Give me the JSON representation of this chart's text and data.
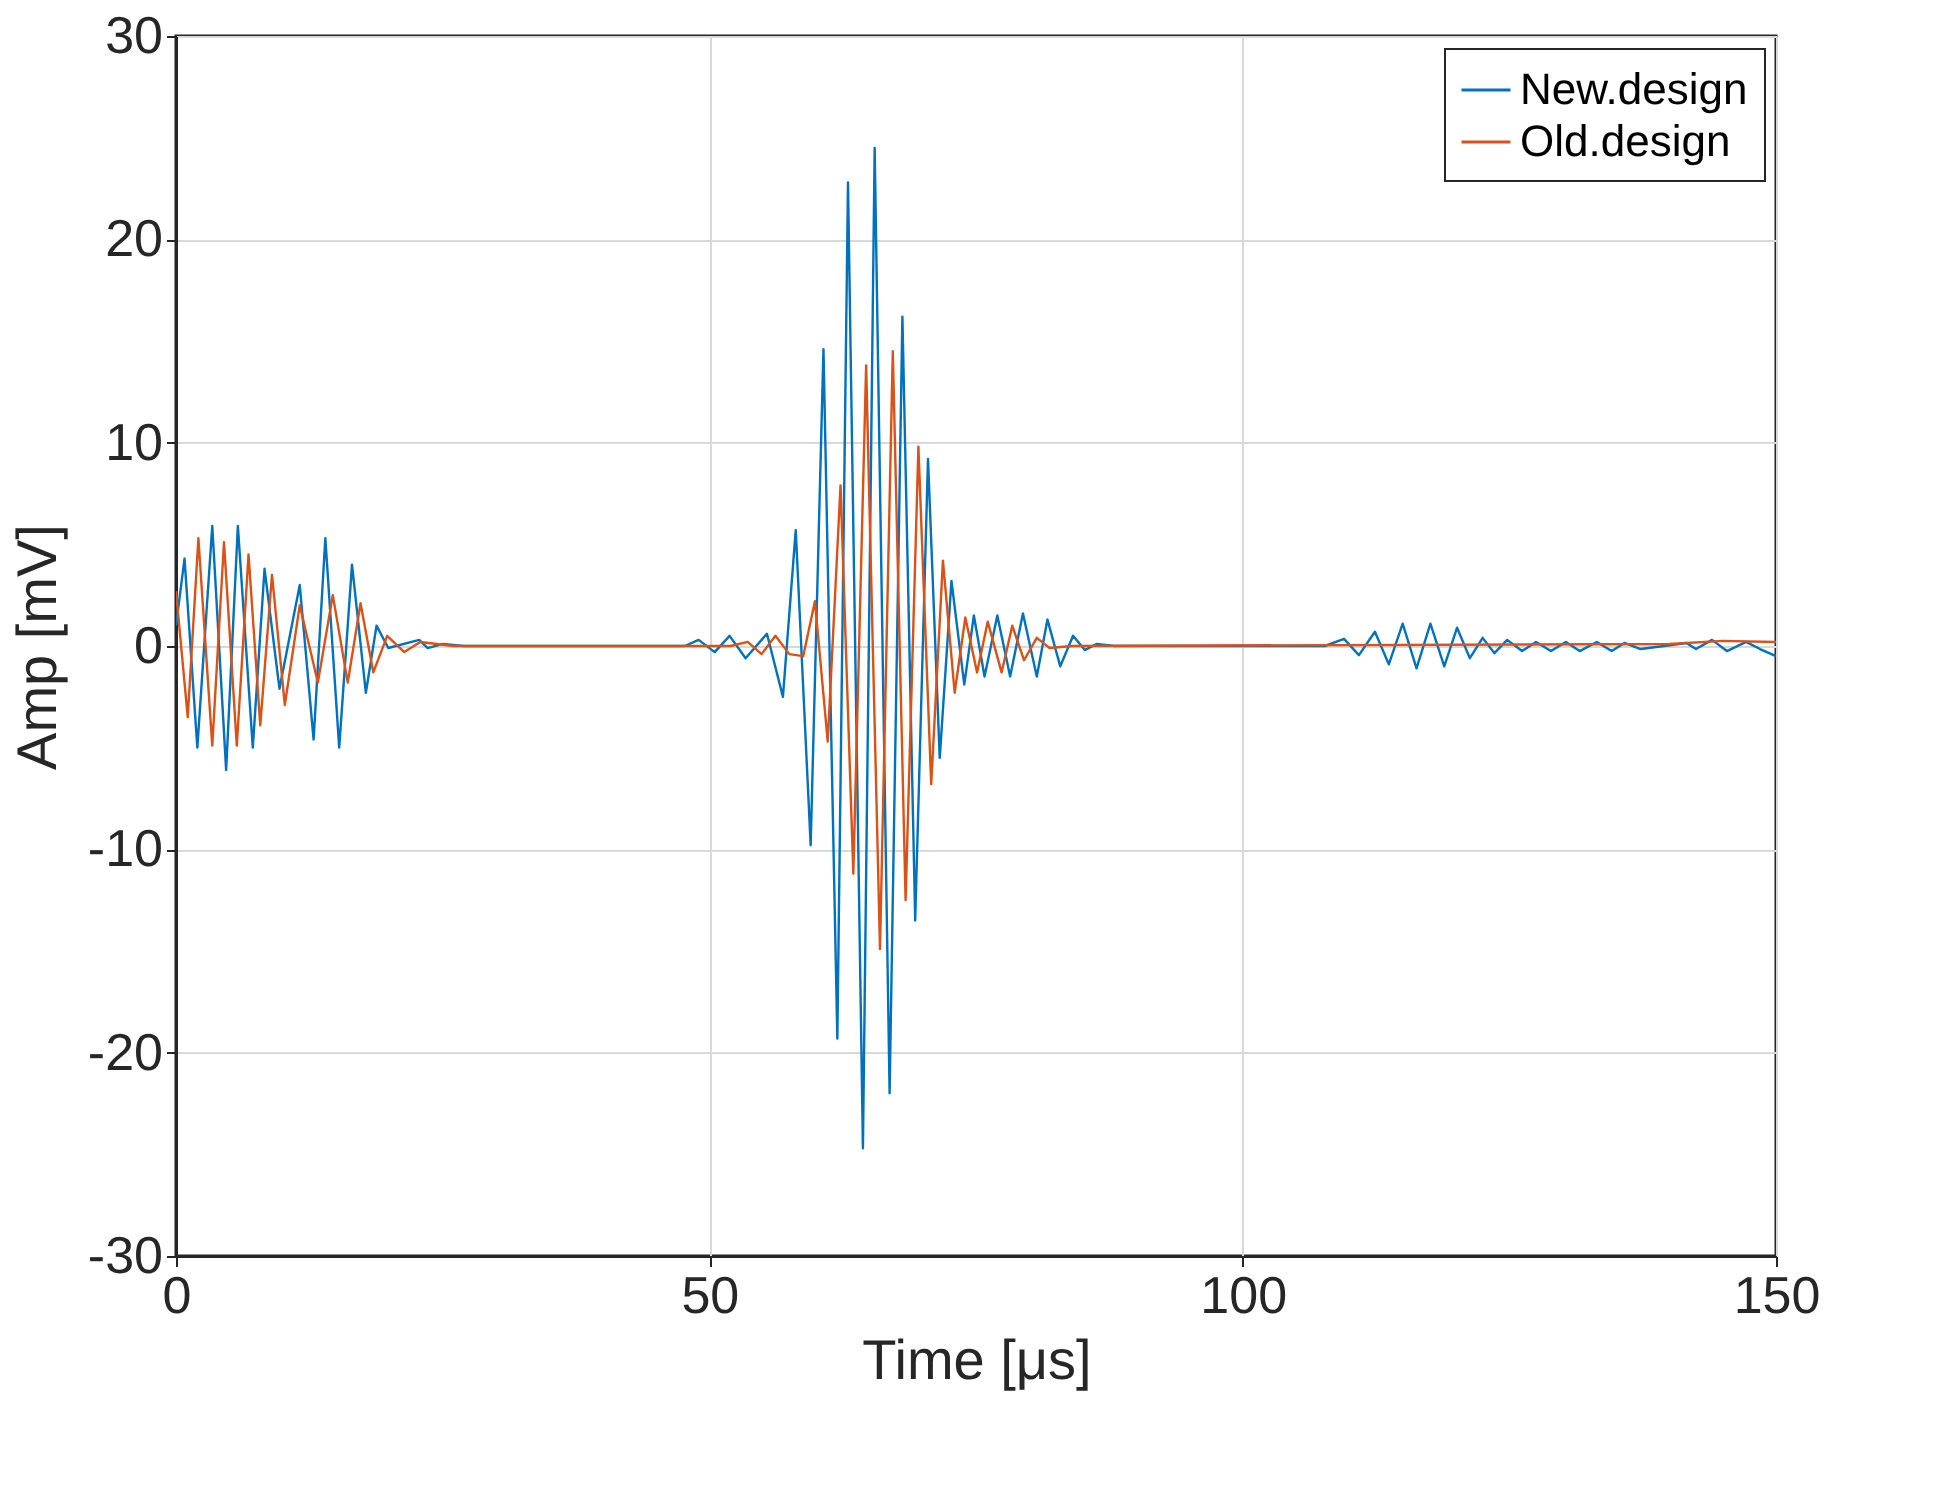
{
  "chart_data": {
    "type": "line",
    "xlabel": "Time [μs]",
    "ylabel": "Amp [mV]",
    "xlim": [
      0,
      150
    ],
    "ylim": [
      -30,
      30
    ],
    "xticks": [
      0,
      50,
      100,
      150
    ],
    "yticks": [
      -30,
      -20,
      -10,
      0,
      10,
      20,
      30
    ],
    "grid": true,
    "legend": "top right",
    "series": [
      {
        "name": "New.design",
        "color": "#0072bd",
        "x": [
          0,
          0.8,
          2.0,
          3.4,
          4.7,
          5.8,
          7.2,
          8.3,
          9.7,
          11.6,
          12.9,
          14.0,
          15.3,
          16.5,
          17.8,
          18.8,
          19.9,
          22.8,
          23.6,
          25.0,
          27,
          47.7,
          49,
          50.5,
          51.9,
          53.4,
          55.4,
          56.9,
          58.1,
          59.5,
          60.7,
          62.0,
          63.0,
          64.4,
          65.5,
          66.9,
          68.1,
          69.3,
          70.5,
          71.6,
          72.7,
          73.9,
          74.8,
          75.8,
          77.0,
          78.2,
          79.4,
          80.7,
          81.7,
          82.9,
          84.1,
          85.2,
          86.3,
          88,
          107.7,
          109.5,
          110.9,
          112.4,
          113.7,
          115.0,
          116.3,
          117.6,
          118.9,
          120.1,
          121.3,
          122.5,
          123.6,
          124.8,
          126.2,
          127.5,
          128.9,
          130.3,
          131.6,
          133.2,
          134.6,
          135.8,
          137.3,
          139.5,
          141.6,
          142.5,
          144.0,
          145.4,
          147.2,
          148.5,
          150
        ],
        "values": [
          1.0,
          4.3,
          -5.0,
          5.9,
          -6.1,
          5.9,
          -5.0,
          3.8,
          -2.1,
          3.0,
          -4.6,
          5.3,
          -5.0,
          4.0,
          -2.3,
          1.0,
          -0.1,
          0.3,
          -0.1,
          0.1,
          0,
          0,
          0.3,
          -0.3,
          0.5,
          -0.6,
          0.6,
          -2.5,
          5.7,
          -9.8,
          14.6,
          -19.3,
          22.8,
          -24.7,
          24.5,
          -22.0,
          16.2,
          -13.5,
          9.2,
          -5.5,
          3.2,
          -1.9,
          1.5,
          -1.5,
          1.5,
          -1.5,
          1.6,
          -1.5,
          1.3,
          -1.0,
          0.5,
          -0.2,
          0.1,
          0,
          0,
          0.35,
          -0.45,
          0.7,
          -0.9,
          1.1,
          -1.1,
          1.1,
          -1.0,
          0.9,
          -0.6,
          0.4,
          -0.35,
          0.3,
          -0.25,
          0.2,
          -0.25,
          0.2,
          -0.25,
          0.2,
          -0.25,
          0.15,
          -0.15,
          0,
          0.15,
          -0.15,
          0.3,
          -0.25,
          0.2,
          -0.15,
          -0.5
        ]
      },
      {
        "name": "Old.design",
        "color": "#d95319",
        "x": [
          0,
          1.1,
          2.1,
          3.4,
          4.5,
          5.7,
          6.8,
          7.9,
          9.0,
          10.2,
          11.6,
          13.3,
          14.7,
          16.1,
          17.3,
          18.5,
          19.8,
          21.4,
          22.9,
          26,
          52,
          53.6,
          54.9,
          56.2,
          57.5,
          58.8,
          59.9,
          61.1,
          62.3,
          63.5,
          64.7,
          66.0,
          67.2,
          68.4,
          69.6,
          70.8,
          71.9,
          73.0,
          74.0,
          75.1,
          76.1,
          77.4,
          78.4,
          79.5,
          80.7,
          81.9,
          84,
          140,
          145,
          150
        ],
        "values": [
          2.7,
          -3.5,
          5.3,
          -4.9,
          5.1,
          -4.9,
          4.5,
          -3.9,
          3.5,
          -2.9,
          2.0,
          -1.8,
          2.5,
          -1.8,
          2.1,
          -1.3,
          0.5,
          -0.3,
          0.2,
          0,
          0,
          0.2,
          -0.4,
          0.5,
          -0.4,
          -0.5,
          2.2,
          -4.7,
          7.9,
          -11.2,
          13.8,
          -14.9,
          14.5,
          -12.5,
          9.8,
          -6.8,
          4.2,
          -2.3,
          1.4,
          -1.3,
          1.2,
          -1.3,
          1.0,
          -0.7,
          0.4,
          -0.1,
          0,
          0.1,
          0.25,
          0.2
        ]
      }
    ]
  }
}
